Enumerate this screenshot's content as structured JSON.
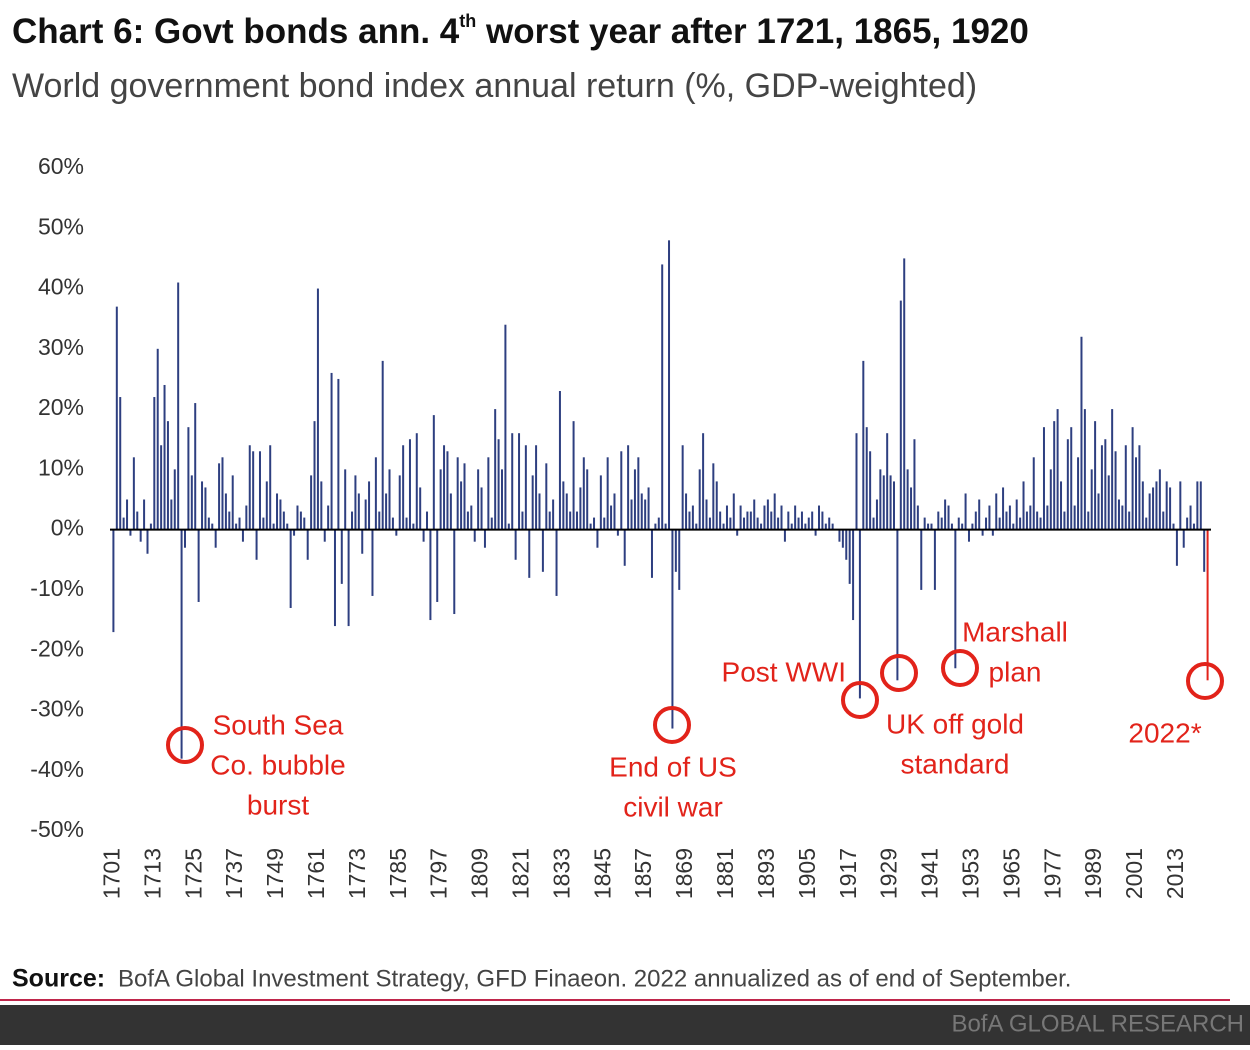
{
  "chart_data": {
    "type": "bar",
    "title": [
      "Chart 6: Govt bonds ann. 4",
      "th",
      " worst year after 1721, 1865, 1920"
    ],
    "subtitle": "World government bond index annual return (%, GDP-weighted)",
    "color": "#2e3f80",
    "last_color": "#e2231a",
    "annotation_color": "#e2231a",
    "x": [
      1701,
      1702,
      1703,
      1704,
      1705,
      1706,
      1707,
      1708,
      1709,
      1710,
      1711,
      1712,
      1713,
      1714,
      1715,
      1716,
      1717,
      1718,
      1719,
      1720,
      1721,
      1722,
      1723,
      1724,
      1725,
      1726,
      1727,
      1728,
      1729,
      1730,
      1731,
      1732,
      1733,
      1734,
      1735,
      1736,
      1737,
      1738,
      1739,
      1740,
      1741,
      1742,
      1743,
      1744,
      1745,
      1746,
      1747,
      1748,
      1749,
      1750,
      1751,
      1752,
      1753,
      1754,
      1755,
      1756,
      1757,
      1758,
      1759,
      1760,
      1761,
      1762,
      1763,
      1764,
      1765,
      1766,
      1767,
      1768,
      1769,
      1770,
      1771,
      1772,
      1773,
      1774,
      1775,
      1776,
      1777,
      1778,
      1779,
      1780,
      1781,
      1782,
      1783,
      1784,
      1785,
      1786,
      1787,
      1788,
      1789,
      1790,
      1791,
      1792,
      1793,
      1794,
      1795,
      1796,
      1797,
      1798,
      1799,
      1800,
      1801,
      1802,
      1803,
      1804,
      1805,
      1806,
      1807,
      1808,
      1809,
      1810,
      1811,
      1812,
      1813,
      1814,
      1815,
      1816,
      1817,
      1818,
      1819,
      1820,
      1821,
      1822,
      1823,
      1824,
      1825,
      1826,
      1827,
      1828,
      1829,
      1830,
      1831,
      1832,
      1833,
      1834,
      1835,
      1836,
      1837,
      1838,
      1839,
      1840,
      1841,
      1842,
      1843,
      1844,
      1845,
      1846,
      1847,
      1848,
      1849,
      1850,
      1851,
      1852,
      1853,
      1854,
      1855,
      1856,
      1857,
      1858,
      1859,
      1860,
      1861,
      1862,
      1863,
      1864,
      1865,
      1866,
      1867,
      1868,
      1869,
      1870,
      1871,
      1872,
      1873,
      1874,
      1875,
      1876,
      1877,
      1878,
      1879,
      1880,
      1881,
      1882,
      1883,
      1884,
      1885,
      1886,
      1887,
      1888,
      1889,
      1890,
      1891,
      1892,
      1893,
      1894,
      1895,
      1896,
      1897,
      1898,
      1899,
      1900,
      1901,
      1902,
      1903,
      1904,
      1905,
      1906,
      1907,
      1908,
      1909,
      1910,
      1911,
      1912,
      1913,
      1914,
      1915,
      1916,
      1917,
      1918,
      1919,
      1920,
      1921,
      1922,
      1923,
      1924,
      1925,
      1926,
      1927,
      1928,
      1929,
      1930,
      1931,
      1932,
      1933,
      1934,
      1935,
      1936,
      1937,
      1938,
      1939,
      1940,
      1941,
      1942,
      1943,
      1944,
      1945,
      1946,
      1947,
      1948,
      1949,
      1950,
      1951,
      1952,
      1953,
      1954,
      1955,
      1956,
      1957,
      1958,
      1959,
      1960,
      1961,
      1962,
      1963,
      1964,
      1965,
      1966,
      1967,
      1968,
      1969,
      1970,
      1971,
      1972,
      1973,
      1974,
      1975,
      1976,
      1977,
      1978,
      1979,
      1980,
      1981,
      1982,
      1983,
      1984,
      1985,
      1986,
      1987,
      1988,
      1989,
      1990,
      1991,
      1992,
      1993,
      1994,
      1995,
      1996,
      1997,
      1998,
      1999,
      2000,
      2001,
      2002,
      2003,
      2004,
      2005,
      2006,
      2007,
      2008,
      2009,
      2010,
      2011,
      2012,
      2013,
      2014,
      2015,
      2016,
      2017,
      2018,
      2019,
      2020,
      2021,
      2022
    ],
    "values": [
      -17,
      37,
      22,
      2,
      5,
      -1,
      12,
      3,
      -2,
      5,
      -4,
      1,
      22,
      30,
      14,
      24,
      18,
      5,
      10,
      41,
      -38,
      -3,
      17,
      9,
      21,
      -12,
      8,
      7,
      2,
      1,
      -3,
      11,
      12,
      6,
      3,
      9,
      1,
      2,
      -2,
      4,
      14,
      13,
      -5,
      13,
      2,
      8,
      14,
      1,
      6,
      5,
      3,
      1,
      -13,
      -1,
      4,
      3,
      2,
      -5,
      9,
      18,
      40,
      8,
      -2,
      4,
      26,
      -16,
      25,
      -9,
      10,
      -16,
      3,
      9,
      6,
      -4,
      5,
      8,
      -11,
      12,
      3,
      28,
      6,
      10,
      2,
      -1,
      9,
      14,
      2,
      15,
      1,
      16,
      7,
      -2,
      3,
      -15,
      19,
      -12,
      10,
      14,
      13,
      6,
      -14,
      12,
      8,
      11,
      3,
      4,
      -2,
      10,
      7,
      -3,
      12,
      2,
      20,
      15,
      10,
      34,
      1,
      16,
      -5,
      16,
      3,
      14,
      -8,
      9,
      14,
      6,
      -7,
      11,
      3,
      5,
      -11,
      23,
      8,
      6,
      3,
      18,
      3,
      7,
      12,
      10,
      1,
      2,
      -3,
      9,
      2,
      12,
      4,
      6,
      -1,
      13,
      -6,
      14,
      5,
      10,
      12,
      6,
      5,
      7,
      -8,
      1,
      2,
      44,
      1,
      48,
      -33,
      -7,
      -10,
      14,
      6,
      3,
      4,
      1,
      10,
      16,
      5,
      2,
      11,
      8,
      3,
      1,
      4,
      2,
      6,
      -1,
      4,
      2,
      3,
      3,
      5,
      2,
      1,
      4,
      5,
      3,
      6,
      2,
      4,
      -2,
      3,
      1,
      4,
      2,
      3,
      1,
      2,
      3,
      -1,
      4,
      3,
      1,
      2,
      1,
      0,
      -2,
      -3,
      -5,
      -9,
      -15,
      16,
      -28,
      28,
      17,
      13,
      2,
      5,
      10,
      9,
      16,
      9,
      8,
      -25,
      38,
      45,
      10,
      7,
      15,
      4,
      -10,
      2,
      1,
      1,
      -10,
      3,
      2,
      5,
      4,
      1,
      -23,
      2,
      1,
      6,
      -2,
      1,
      3,
      5,
      -1,
      2,
      4,
      -1,
      6,
      2,
      7,
      3,
      4,
      1,
      5,
      2,
      8,
      3,
      4,
      12,
      3,
      2,
      17,
      4,
      10,
      18,
      20,
      8,
      3,
      15,
      17,
      4,
      12,
      32,
      20,
      3,
      10,
      18,
      6,
      14,
      15,
      9,
      20,
      13,
      5,
      4,
      14,
      3,
      17,
      12,
      14,
      8,
      2,
      6,
      7,
      8,
      10,
      3,
      8,
      7,
      1,
      -6,
      8,
      -3,
      2,
      4,
      1,
      8,
      8,
      -7,
      -25
    ],
    "xlim": [
      1700,
      2023
    ],
    "xticks": [
      1701,
      1713,
      1725,
      1737,
      1749,
      1761,
      1773,
      1785,
      1797,
      1809,
      1821,
      1833,
      1845,
      1857,
      1869,
      1881,
      1893,
      1905,
      1917,
      1929,
      1941,
      1953,
      1965,
      1977,
      1989,
      2001,
      2013
    ],
    "ylim": [
      -50,
      60
    ],
    "yticks": [
      {
        "value": 60,
        "label": "60%"
      },
      {
        "value": 50,
        "label": "50%"
      },
      {
        "value": 40,
        "label": "40%"
      },
      {
        "value": 30,
        "label": "30%"
      },
      {
        "value": 20,
        "label": "20%"
      },
      {
        "value": 10,
        "label": "10%"
      },
      {
        "value": 0,
        "label": "0%"
      },
      {
        "value": -10,
        "label": "-10%"
      },
      {
        "value": -20,
        "label": "-20%"
      },
      {
        "value": -30,
        "label": "-30%"
      },
      {
        "value": -40,
        "label": "-40%"
      },
      {
        "value": -50,
        "label": "-50%"
      }
    ],
    "annotations": [
      {
        "text": [
          "South Sea",
          "Co. bubble",
          "burst"
        ]
      },
      {
        "text": [
          "End of US",
          "civil war"
        ]
      },
      {
        "text": [
          "Post WWI"
        ]
      },
      {
        "text": [
          "UK off gold",
          "standard"
        ]
      },
      {
        "text": [
          "Marshall",
          "plan"
        ]
      },
      {
        "text": [
          "2022*"
        ]
      }
    ],
    "source_label": "Source:",
    "source": "BofA Global Investment Strategy, GFD Finaeon. 2022 annualized as of end of September.",
    "footer": "BofA GLOBAL RESEARCH"
  }
}
